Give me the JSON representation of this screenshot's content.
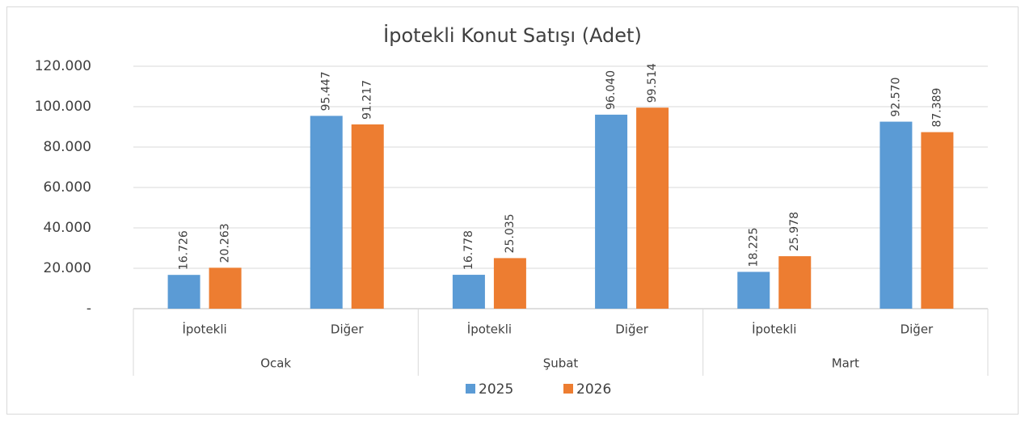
{
  "chart_data": {
    "type": "bar",
    "title": "İpotekli Konut Satışı (Adet)",
    "groups": [
      "Ocak",
      "Şubat",
      "Mart"
    ],
    "categories": [
      "İpotekli",
      "Diğer",
      "İpotekli",
      "Diğer",
      "İpotekli",
      "Diğer"
    ],
    "series": [
      {
        "name": "2025",
        "color": "#5b9bd5",
        "values": [
          16726,
          95447,
          16778,
          96040,
          18225,
          92570
        ],
        "value_labels": [
          "16.726",
          "95.447",
          "16.778",
          "96.040",
          "18.225",
          "92.570"
        ]
      },
      {
        "name": "2026",
        "color": "#ed7d31",
        "values": [
          20263,
          91217,
          25035,
          99514,
          25978,
          87389
        ],
        "value_labels": [
          "20.263",
          "91.217",
          "25.035",
          "99.514",
          "25.978",
          "87.389"
        ]
      }
    ],
    "ylim": [
      0,
      120000
    ],
    "yticks": [
      {
        "value": 0,
        "label": "-"
      },
      {
        "value": 20000,
        "label": "20.000"
      },
      {
        "value": 40000,
        "label": "40.000"
      },
      {
        "value": 60000,
        "label": "60.000"
      },
      {
        "value": 80000,
        "label": "80.000"
      },
      {
        "value": 100000,
        "label": "100.000"
      },
      {
        "value": 120000,
        "label": "120.000"
      }
    ],
    "grid": true,
    "legend": "bottom"
  }
}
